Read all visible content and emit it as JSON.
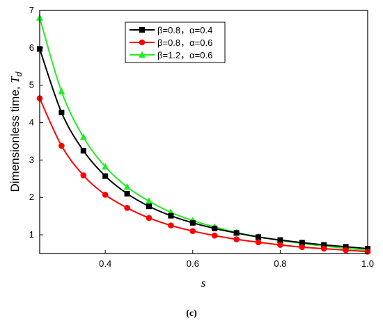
{
  "chart_data": {
    "type": "line",
    "xlabel": "s",
    "ylabel_main": "Dimensionless time, ",
    "ylabel_symbol": "T",
    "ylabel_subscript": "d",
    "caption": "(c)",
    "xlim": [
      0.25,
      1.0
    ],
    "ylim": [
      0.5,
      7
    ],
    "xticks": [
      0.4,
      0.6,
      0.8,
      1.0
    ],
    "xtick_labels": [
      "0.4",
      "0.6",
      "0.8",
      "1.0"
    ],
    "yticks": [
      1,
      2,
      3,
      4,
      5,
      6,
      7
    ],
    "ytick_labels": [
      "1",
      "2",
      "3",
      "4",
      "5",
      "6",
      "7"
    ],
    "legend_position": "top-center",
    "x": [
      0.25,
      0.3,
      0.35,
      0.4,
      0.45,
      0.5,
      0.55,
      0.6,
      0.65,
      0.7,
      0.75,
      0.8,
      0.85,
      0.9,
      0.95,
      1.0
    ],
    "series": [
      {
        "name": "β=0.8，α=0.4",
        "color": "#000000",
        "marker": "square",
        "values": [
          5.97,
          4.27,
          3.25,
          2.57,
          2.1,
          1.76,
          1.51,
          1.32,
          1.17,
          1.05,
          0.94,
          0.86,
          0.79,
          0.73,
          0.68,
          0.63
        ]
      },
      {
        "name": "β=0.8，α=0.6",
        "color": "#ff0000",
        "marker": "circle",
        "values": [
          4.65,
          3.38,
          2.59,
          2.07,
          1.72,
          1.45,
          1.25,
          1.1,
          0.98,
          0.88,
          0.8,
          0.73,
          0.67,
          0.63,
          0.59,
          0.55
        ]
      },
      {
        "name": "β=1.2，α=0.6",
        "color": "#22ee22",
        "marker": "triangle",
        "values": [
          6.8,
          4.83,
          3.61,
          2.82,
          2.28,
          1.9,
          1.6,
          1.38,
          1.21,
          1.06,
          0.95,
          0.85,
          0.77,
          0.7,
          0.64,
          0.58
        ]
      }
    ]
  }
}
